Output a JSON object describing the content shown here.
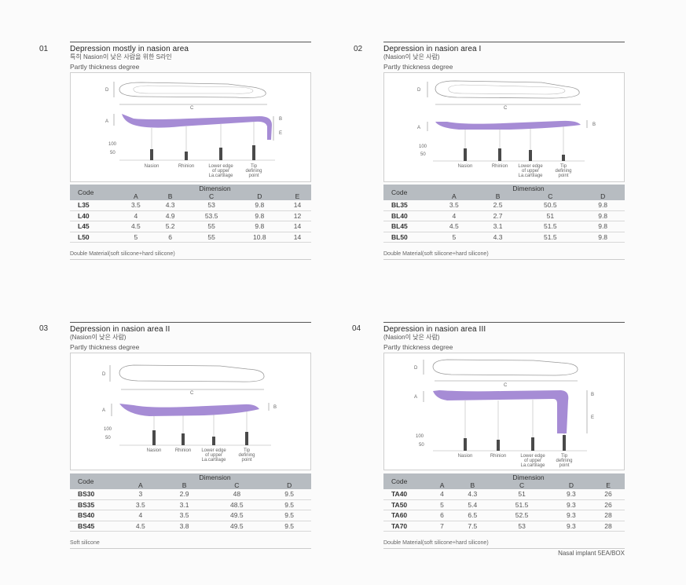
{
  "panels": [
    {
      "num": "01",
      "title": "Depression mostly in nasion area",
      "subtitle": "특히 Nasion이 낮은 사람을 위한 S라인",
      "thickness": "Partly thickness degree",
      "dimension_label": "Dimension",
      "code_label": "Code",
      "columns": [
        "A",
        "B",
        "C",
        "D",
        "E"
      ],
      "rows": [
        {
          "code": "L35",
          "values": [
            "3.5",
            "4.3",
            "53",
            "9.8",
            "14"
          ]
        },
        {
          "code": "L40",
          "values": [
            "4",
            "4.9",
            "53.5",
            "9.8",
            "12"
          ]
        },
        {
          "code": "L45",
          "values": [
            "4.5",
            "5.2",
            "55",
            "9.8",
            "14"
          ]
        },
        {
          "code": "L50",
          "values": [
            "5",
            "6",
            "55",
            "10.8",
            "14"
          ]
        }
      ],
      "material": "Double Material(soft silicone+hard silicone)",
      "figure": {
        "dims": [
          "D",
          "C",
          "A",
          "B",
          "E"
        ],
        "scale": [
          "100",
          "50"
        ],
        "points": [
          "Nasion",
          "Rhinion",
          "Lower edge of upper La.cartilage",
          "Tip defining point"
        ]
      }
    },
    {
      "num": "02",
      "title": "Depression in nasion area I",
      "subtitle": "(Nasion이 낮은 사람)",
      "thickness": "Partly thickness degree",
      "dimension_label": "Dimension",
      "code_label": "Code",
      "columns": [
        "A",
        "B",
        "C",
        "D"
      ],
      "rows": [
        {
          "code": "BL35",
          "values": [
            "3.5",
            "2.5",
            "50.5",
            "9.8"
          ]
        },
        {
          "code": "BL40",
          "values": [
            "4",
            "2.7",
            "51",
            "9.8"
          ]
        },
        {
          "code": "BL45",
          "values": [
            "4.5",
            "3.1",
            "51.5",
            "9.8"
          ]
        },
        {
          "code": "BL50",
          "values": [
            "5",
            "4.3",
            "51.5",
            "9.8"
          ]
        }
      ],
      "material": "Double Material(soft silicone+hard silicone)",
      "figure": {
        "dims": [
          "D",
          "C",
          "A",
          "B"
        ],
        "scale": [
          "100",
          "50"
        ],
        "points": [
          "Nasion",
          "Rhinion",
          "Lower edge of upper La.cartilage",
          "Tip defining point"
        ]
      }
    },
    {
      "num": "03",
      "title": "Depression in nasion area II",
      "subtitle": "(Nasion이 낮은 사람)",
      "thickness": "Partly thickness degree",
      "dimension_label": "Dimension",
      "code_label": "Code",
      "columns": [
        "A",
        "B",
        "C",
        "D"
      ],
      "rows": [
        {
          "code": "BS30",
          "values": [
            "3",
            "2.9",
            "48",
            "9.5"
          ]
        },
        {
          "code": "BS35",
          "values": [
            "3.5",
            "3.1",
            "48.5",
            "9.5"
          ]
        },
        {
          "code": "BS40",
          "values": [
            "4",
            "3.5",
            "49.5",
            "9.5"
          ]
        },
        {
          "code": "BS45",
          "values": [
            "4.5",
            "3.8",
            "49.5",
            "9.5"
          ]
        }
      ],
      "material": "Soft silicone",
      "figure": {
        "dims": [
          "D",
          "C",
          "A",
          "B"
        ],
        "scale": [
          "100",
          "50"
        ],
        "points": [
          "Nasion",
          "Rhinion",
          "Lower edge of upper La.cartilage",
          "Tip defining point"
        ]
      }
    },
    {
      "num": "04",
      "title": "Depression in nasion area III",
      "subtitle": "(Nasion이 낮은 사람)",
      "thickness": "Partly thickness degree",
      "dimension_label": "Dimension",
      "code_label": "Code",
      "columns": [
        "A",
        "B",
        "C",
        "D",
        "E"
      ],
      "rows": [
        {
          "code": "TA40",
          "values": [
            "4",
            "4.3",
            "51",
            "9.3",
            "26"
          ]
        },
        {
          "code": "TA50",
          "values": [
            "5",
            "5.4",
            "51.5",
            "9.3",
            "26"
          ]
        },
        {
          "code": "TA60",
          "values": [
            "6",
            "6.5",
            "52.5",
            "9.3",
            "28"
          ]
        },
        {
          "code": "TA70",
          "values": [
            "7",
            "7.5",
            "53",
            "9.3",
            "28"
          ]
        }
      ],
      "material": "Double Material(soft silicone+hard silicone)",
      "figure": {
        "dims": [
          "D",
          "C",
          "A",
          "B",
          "E"
        ],
        "scale": [
          "100",
          "50"
        ],
        "points": [
          "Nasion",
          "Rhinion",
          "Lower edge of upper La.cartilage",
          "Tip defining point"
        ]
      }
    }
  ],
  "footer": "Nasal implant 5EA/BOX",
  "colors": {
    "implant": "#9c7fd0",
    "header": "#b7bcc1",
    "bar": "#4a4a4a"
  }
}
